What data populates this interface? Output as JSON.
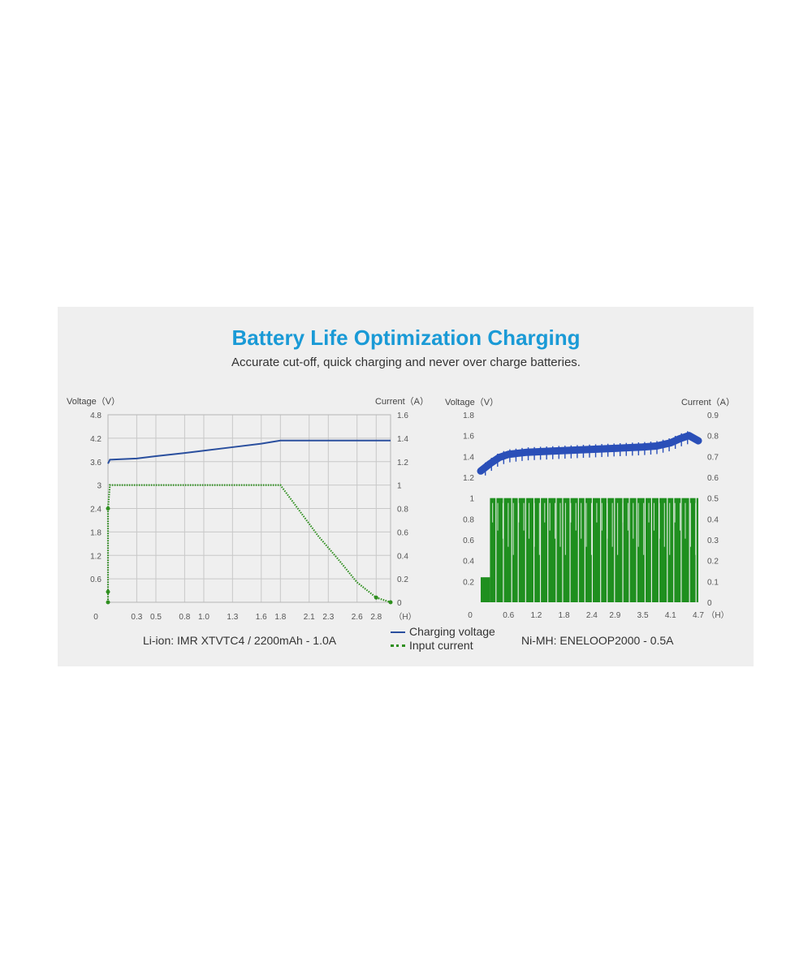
{
  "header": {
    "title": "Battery Life Optimization Charging",
    "subtitle": "Accurate cut-off, quick charging and never over charge batteries."
  },
  "legend": {
    "voltage_label": "Charging voltage",
    "current_label": "Input current",
    "voltage_color": "#2a4f9e",
    "current_color": "#2f8f1f"
  },
  "chart_data": [
    {
      "type": "line",
      "caption": "Li-ion: IMR XTVTC4 / 2200mAh - 1.0A",
      "ylabel_left": "Voltage（V）",
      "ylabel_right": "Current（A）",
      "xunit": "（H）",
      "x_origin_label": "0",
      "x_ticks": [
        "0.3",
        "0.5",
        "0.8",
        "1.0",
        "1.3",
        "1.6",
        "1.8",
        "2.1",
        "2.3",
        "2.6",
        "2.8"
      ],
      "y_left_ticks": [
        "4.8",
        "4.2",
        "3.6",
        "3",
        "2.4",
        "1.8",
        "1.2",
        "0.6"
      ],
      "y_right_ticks": [
        "1.6",
        "1.4",
        "1.2",
        "1",
        "0.8",
        "0.6",
        "0.4",
        "0.2",
        "0"
      ],
      "grid": true,
      "series": [
        {
          "name": "Charging voltage",
          "axis": "left",
          "color": "#2a4f9e",
          "x": [
            0.0,
            0.02,
            0.3,
            0.5,
            0.8,
            1.0,
            1.3,
            1.6,
            1.8,
            2.1,
            2.3,
            2.6,
            2.8,
            2.95
          ],
          "y": [
            3.55,
            3.65,
            3.68,
            3.74,
            3.82,
            3.88,
            3.97,
            4.06,
            4.14,
            4.14,
            4.14,
            4.14,
            4.14,
            4.14
          ]
        },
        {
          "name": "Input current",
          "axis": "right",
          "color": "#2f8f1f",
          "x": [
            0.0,
            0.0,
            0.02,
            0.3,
            0.8,
            1.3,
            1.75,
            1.8,
            2.0,
            2.2,
            2.4,
            2.6,
            2.8,
            2.95
          ],
          "y": [
            0.0,
            0.8,
            1.0,
            1.0,
            1.0,
            1.0,
            1.0,
            1.0,
            0.78,
            0.56,
            0.37,
            0.17,
            0.04,
            0.0
          ]
        }
      ]
    },
    {
      "type": "line",
      "caption": "Ni-MH: ENELOOP2000 - 0.5A",
      "ylabel_left": "Voltage（V）",
      "ylabel_right": "Current（A）",
      "xunit": "（H）",
      "x_origin_label": "0",
      "x_ticks": [
        "0.6",
        "1.2",
        "1.8",
        "2.4",
        "2.9",
        "3.5",
        "4.1",
        "4.7"
      ],
      "y_left_ticks": [
        "1.8",
        "1.6",
        "1.4",
        "1.2",
        "1",
        "0.8",
        "0.6",
        "0.4",
        "0.2"
      ],
      "y_right_ticks": [
        "0.9",
        "0.8",
        "0.7",
        "0.6",
        "0.5",
        "0.4",
        "0.3",
        "0.2",
        "0.1",
        "0"
      ],
      "grid": false,
      "series": [
        {
          "name": "Charging voltage",
          "axis": "left",
          "color": "#2a4fb8",
          "x": [
            0.0,
            0.2,
            0.4,
            0.6,
            1.0,
            1.5,
            2.0,
            2.5,
            3.0,
            3.5,
            3.8,
            4.1,
            4.3,
            4.5,
            4.7
          ],
          "y": [
            1.26,
            1.33,
            1.39,
            1.42,
            1.44,
            1.45,
            1.46,
            1.47,
            1.48,
            1.49,
            1.5,
            1.53,
            1.57,
            1.6,
            1.55
          ]
        },
        {
          "name": "Input current",
          "axis": "right",
          "color": "#1f8f1f",
          "x_start": 0.0,
          "x_end": 4.7,
          "pulse_start": 0.2,
          "y_low": 0.0,
          "y_high": 0.5,
          "y_pre_charge": 0.12
        }
      ]
    }
  ]
}
